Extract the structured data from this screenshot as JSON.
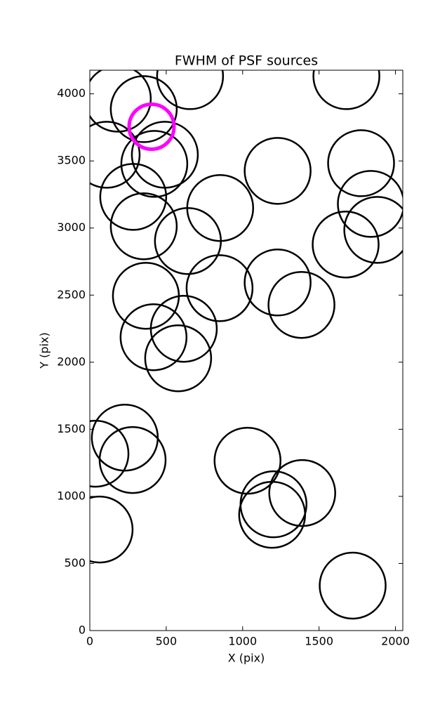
{
  "chart_data": {
    "type": "scatter",
    "title": "FWHM of PSF sources",
    "xlabel": "X (pix)",
    "ylabel": "Y (pix)",
    "xlim": [
      0,
      2048
    ],
    "ylim": [
      0,
      4176
    ],
    "xticks": [
      0,
      500,
      1000,
      1500,
      2000
    ],
    "yticks": [
      0,
      500,
      1000,
      1500,
      2000,
      2500,
      3000,
      3500,
      4000
    ],
    "series": [
      {
        "color": "#000000",
        "marker": "open-circle",
        "marker_radius": 47,
        "x": [
          183,
          353,
          656,
          1679,
          110,
          491,
          422,
          1229,
          1775,
          284,
          1839,
          853,
          1881,
          353,
          642,
          1674,
          367,
          1229,
          849,
          1385,
          615,
          417,
          578,
          37,
          229,
          280,
          1032,
          1202,
          1390,
          1193,
          64,
          1720
        ],
        "y": [
          3964,
          3886,
          4132,
          4132,
          3546,
          3546,
          3478,
          3426,
          3483,
          3232,
          3180,
          3149,
          2986,
          3013,
          2903,
          2877,
          2495,
          2594,
          2552,
          2427,
          2249,
          2186,
          2029,
          1318,
          1438,
          1271,
          1266,
          941,
          1025,
          863,
          753,
          335
        ]
      },
      {
        "color": "#ff00ff",
        "marker": "open-circle",
        "marker_radius": 32,
        "x": [
          404
        ],
        "y": [
          3755
        ]
      }
    ]
  }
}
